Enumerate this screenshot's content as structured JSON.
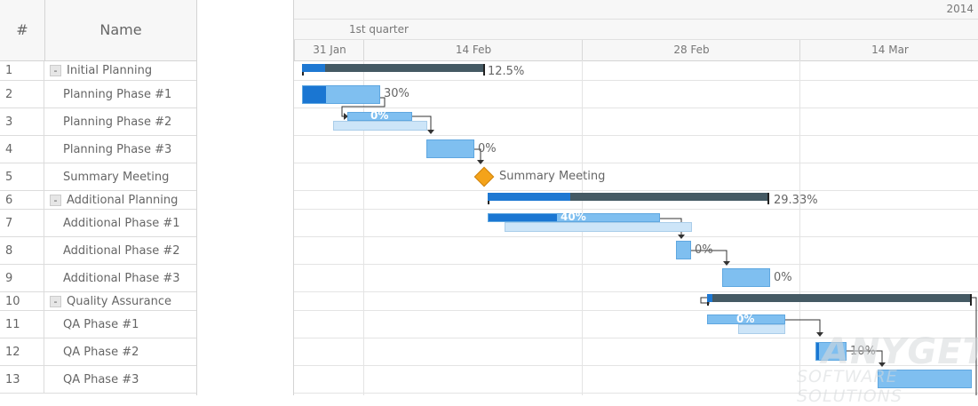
{
  "grid": {
    "header": {
      "num": "#",
      "name": "Name"
    },
    "rows": [
      {
        "num": "1",
        "name": "Initial Planning",
        "parent": true,
        "toggle": "-"
      },
      {
        "num": "2",
        "name": "Planning Phase #1"
      },
      {
        "num": "3",
        "name": "Planning Phase #2"
      },
      {
        "num": "4",
        "name": "Planning Phase #3"
      },
      {
        "num": "5",
        "name": "Summary Meeting"
      },
      {
        "num": "6",
        "name": "Additional Planning",
        "parent": true,
        "toggle": "-"
      },
      {
        "num": "7",
        "name": "Additional Phase #1"
      },
      {
        "num": "8",
        "name": "Additional Phase #2"
      },
      {
        "num": "9",
        "name": "Additional Phase #3"
      },
      {
        "num": "10",
        "name": "Quality Assurance",
        "parent": true,
        "toggle": "-"
      },
      {
        "num": "11",
        "name": "QA Phase #1"
      },
      {
        "num": "12",
        "name": "QA Phase #2"
      },
      {
        "num": "13",
        "name": "QA Phase #3"
      }
    ]
  },
  "timeline": {
    "year": "2014",
    "quarter": "1st quarter",
    "periods": [
      "31 Jan",
      "14 Feb",
      "28 Feb",
      "14 Mar"
    ]
  },
  "tasks": {
    "t1": {
      "label": "12.5%",
      "progress": 0.125
    },
    "t2": {
      "label": "30%",
      "progress": 0.3
    },
    "t3": {
      "label": "0%",
      "progress": 0
    },
    "t4": {
      "label": "0%",
      "progress": 0
    },
    "t5": {
      "label": "Summary Meeting"
    },
    "t6": {
      "label": "29.33%",
      "progress": 0.2933
    },
    "t7": {
      "label": "40%",
      "progress": 0.4
    },
    "t8": {
      "label": "0%",
      "progress": 0
    },
    "t9": {
      "label": "0%",
      "progress": 0
    },
    "t10": {
      "progress": 0.02
    },
    "t11": {
      "label": "0%",
      "progress": 0
    },
    "t12": {
      "label": "10%",
      "progress": 0.1
    },
    "t13": {
      "progress": 0
    }
  },
  "colors": {
    "progress": "#1a76d2",
    "plan": "#7fbff0",
    "baseline": "#cde5f8",
    "summary": "#455a64",
    "milestone": "#f4a31a"
  },
  "watermark": {
    "logo": "ANYGET",
    "sub": "SOFTWARE SOLUTIONS"
  }
}
